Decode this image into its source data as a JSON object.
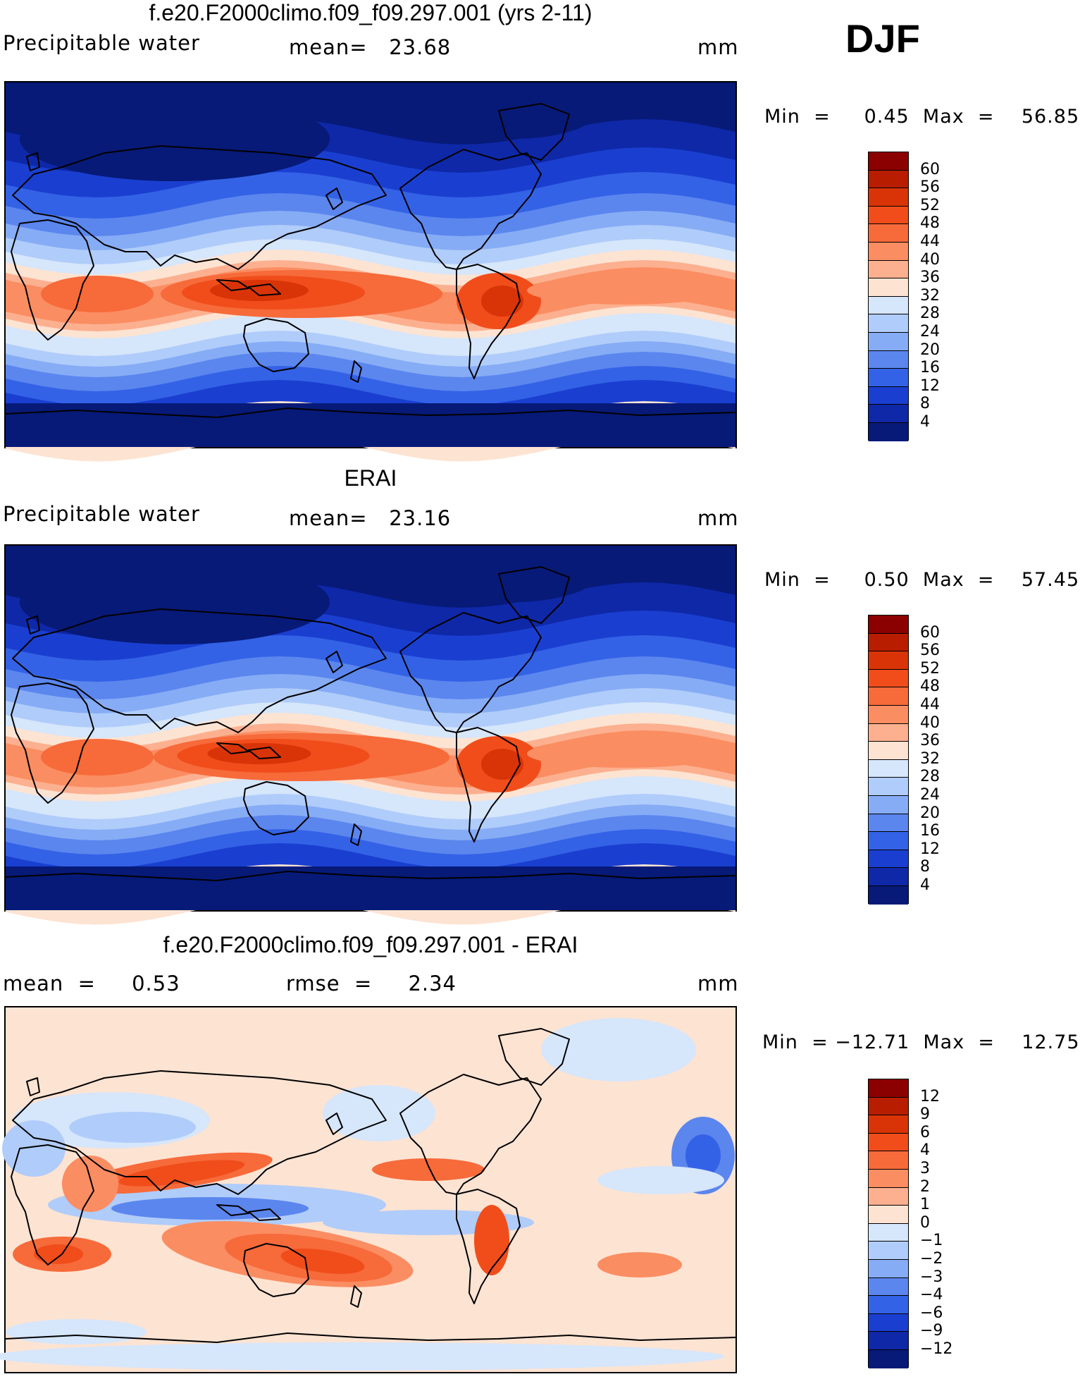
{
  "season": "DJF",
  "panels": [
    {
      "id": "model",
      "title": "f.e20.F2000climo.f09_f09.297.001 (yrs 2-11)",
      "left_label": "Precipitable water",
      "mid_text": "mean=   23.68",
      "units": "mm",
      "minmax": "Min  =     0.45  Max  =    56.85",
      "scale": "abs",
      "levels": [
        "60",
        "56",
        "52",
        "48",
        "44",
        "40",
        "36",
        "32",
        "28",
        "24",
        "20",
        "16",
        "12",
        "8",
        "4"
      ]
    },
    {
      "id": "obs",
      "title": "ERAI",
      "left_label": "Precipitable water",
      "mid_text": "mean=   23.16",
      "units": "mm",
      "minmax": "Min  =     0.50  Max  =    57.45",
      "scale": "abs",
      "levels": [
        "60",
        "56",
        "52",
        "48",
        "44",
        "40",
        "36",
        "32",
        "28",
        "24",
        "20",
        "16",
        "12",
        "8",
        "4"
      ]
    },
    {
      "id": "diff",
      "title": "f.e20.F2000climo.f09_f09.297.001 - ERAI",
      "left_label": "mean  =     0.53",
      "mid_text": "rmse  =     2.34",
      "units": "mm",
      "minmax": "Min  = −12.71  Max  =    12.75",
      "scale": "diff",
      "levels": [
        "12",
        "9",
        "6",
        "4",
        "3",
        "2",
        "1",
        "0",
        "−1",
        "−2",
        "−3",
        "−4",
        "−6",
        "−9",
        "−12"
      ]
    }
  ],
  "palette": [
    "#8b0000",
    "#b81d00",
    "#d93407",
    "#f04d1b",
    "#f76a3a",
    "#fb8d62",
    "#fcb08f",
    "#fde3d2",
    "#d6e6fb",
    "#b0ccfa",
    "#86acf5",
    "#5b86ee",
    "#3462e6",
    "#1a3fd0",
    "#0e28a8",
    "#071a78"
  ],
  "maps": {
    "model": {
      "tropic_strength": 1.0
    },
    "obs": {
      "tropic_strength": 1.05
    },
    "diff": {}
  }
}
